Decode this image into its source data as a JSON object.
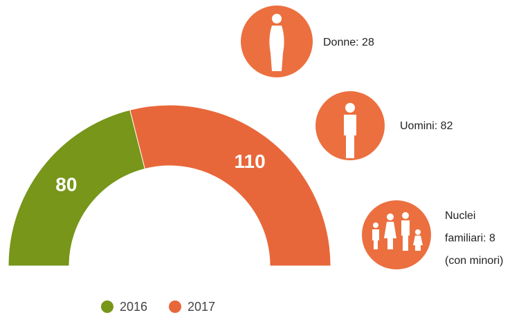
{
  "chart_data": {
    "type": "halfdonut",
    "categories": [
      "2016",
      "2017"
    ],
    "values": [
      80,
      110
    ],
    "colors": [
      "#77961a",
      "#e8673a"
    ],
    "legend": "bottom"
  },
  "items": [
    {
      "lines": [
        "Donne: 28"
      ]
    },
    {
      "lines": [
        "Uomini: 82"
      ]
    },
    {
      "lines": [
        "Nuclei",
        "familiari: 8",
        "(con minori)"
      ]
    }
  ]
}
